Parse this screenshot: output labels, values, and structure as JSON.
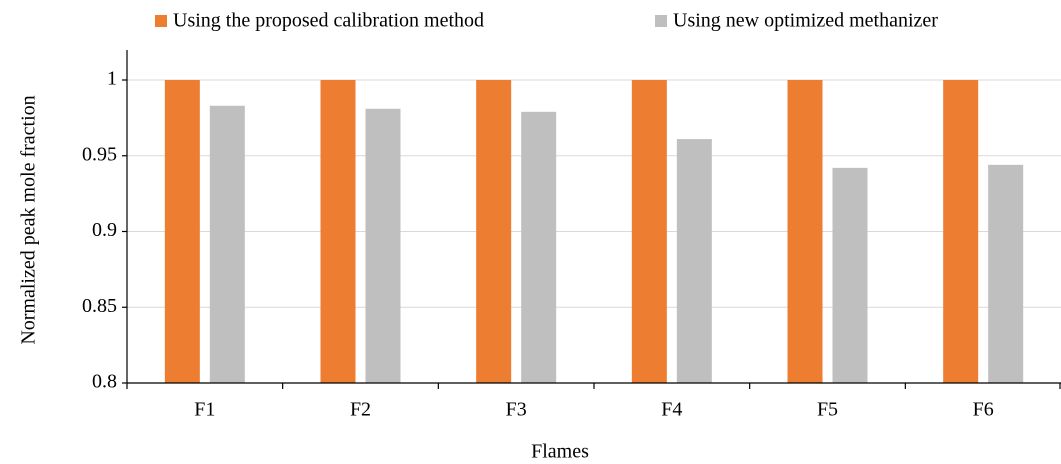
{
  "chart_data": {
    "type": "bar",
    "categories": [
      "F1",
      "F2",
      "F3",
      "F4",
      "F5",
      "F6"
    ],
    "series": [
      {
        "name": "Using the proposed calibration method",
        "color": "#ed7d31",
        "values": [
          1,
          1,
          1,
          1,
          1,
          1
        ]
      },
      {
        "name": "Using new optimized methanizer",
        "color": "#bfbfbf",
        "values": [
          0.983,
          0.981,
          0.979,
          0.961,
          0.942,
          0.944
        ]
      }
    ],
    "x_label": "Flames",
    "y_label": "Normalized  peak mole fraction",
    "ylim": [
      0.8,
      1
    ],
    "yticks": [
      0.8,
      0.85,
      0.9,
      0.95,
      1
    ],
    "grid": true,
    "legend": "top"
  }
}
